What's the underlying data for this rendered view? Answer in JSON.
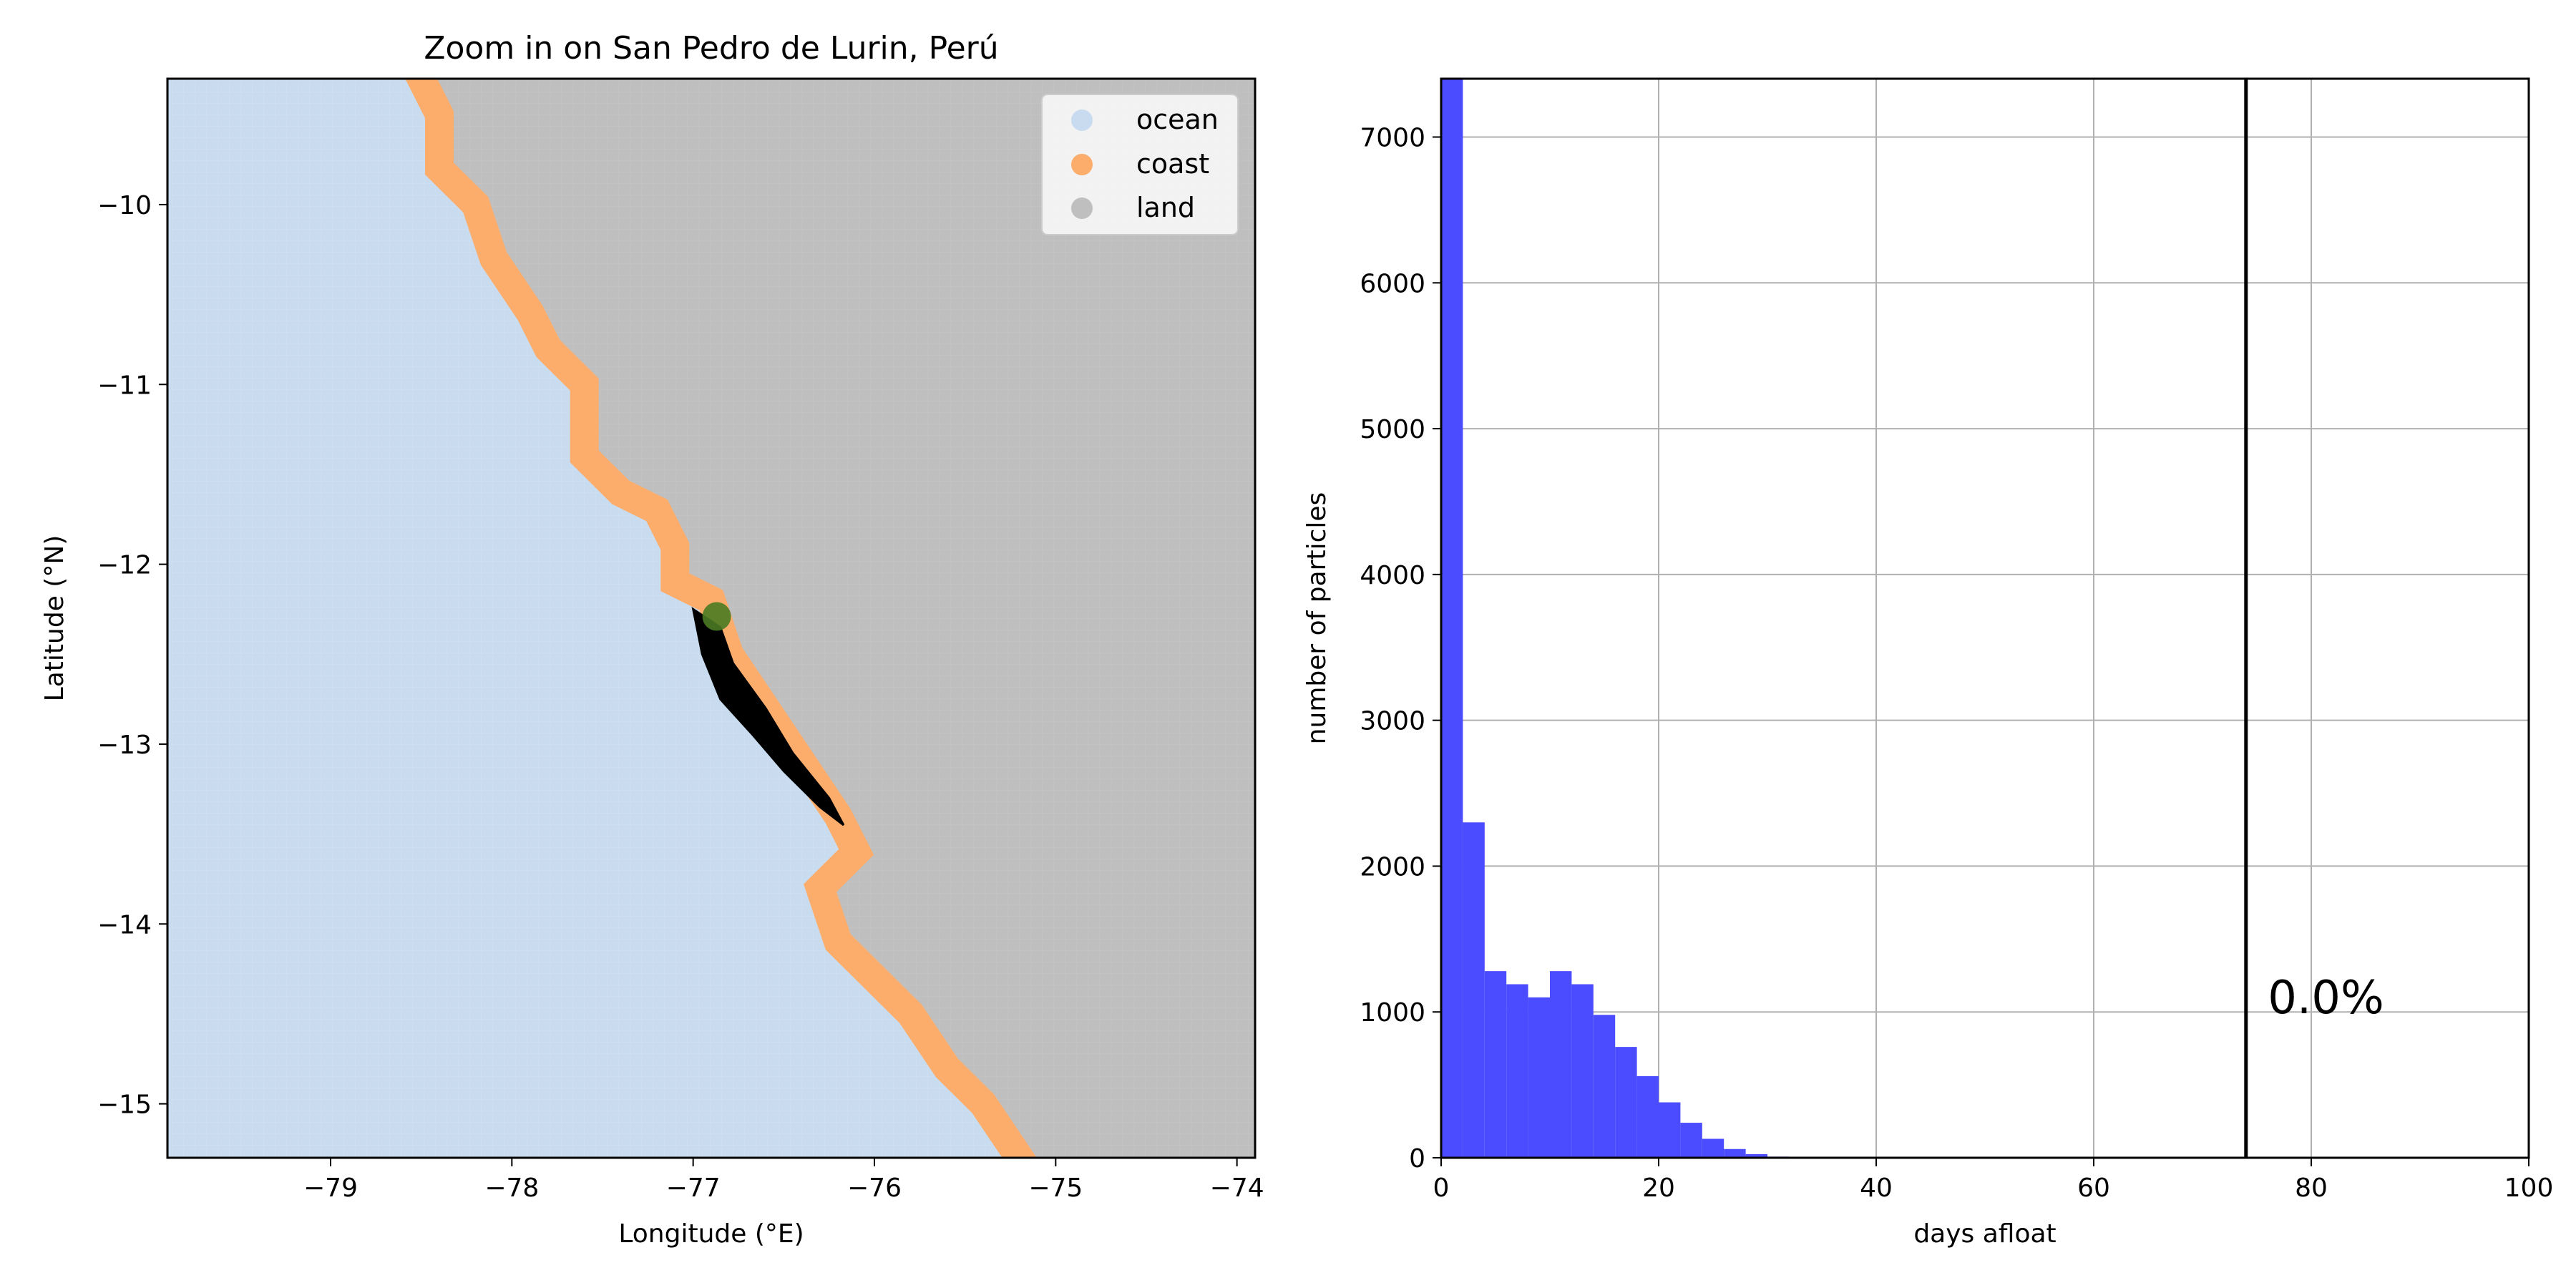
{
  "chart_data": [
    {
      "type": "map",
      "title": "Zoom in on San Pedro de Lurin, Perú",
      "xlabel": "Longitude (°E)",
      "ylabel": "Latitude (°N)",
      "xlim": [
        -79.9,
        -73.9
      ],
      "ylim": [
        -15.3,
        -9.3
      ],
      "xticks": [
        -79,
        -78,
        -77,
        -76,
        -75,
        -74
      ],
      "yticks": [
        -10,
        -11,
        -12,
        -13,
        -14,
        -15
      ],
      "xtick_labels": [
        "−79",
        "−78",
        "−77",
        "−76",
        "−75",
        "−74"
      ],
      "ytick_labels": [
        "−10",
        "−11",
        "−12",
        "−13",
        "−14",
        "−15"
      ],
      "legend": {
        "placement": "top-right",
        "entries": [
          {
            "label": "ocean",
            "color": "#c9dcef"
          },
          {
            "label": "coast",
            "color": "#fdad6b"
          },
          {
            "label": "land",
            "color": "#bfbfbf"
          }
        ]
      },
      "coastline": [
        [
          -78.5,
          -9.3
        ],
        [
          -78.4,
          -9.5
        ],
        [
          -78.4,
          -9.8
        ],
        [
          -78.2,
          -10.0
        ],
        [
          -78.1,
          -10.3
        ],
        [
          -77.9,
          -10.6
        ],
        [
          -77.8,
          -10.8
        ],
        [
          -77.6,
          -11.0
        ],
        [
          -77.6,
          -11.4
        ],
        [
          -77.4,
          -11.6
        ],
        [
          -77.2,
          -11.7
        ],
        [
          -77.1,
          -11.9
        ],
        [
          -77.1,
          -12.1
        ],
        [
          -76.9,
          -12.2
        ],
        [
          -76.8,
          -12.5
        ],
        [
          -76.6,
          -12.8
        ],
        [
          -76.4,
          -13.1
        ],
        [
          -76.2,
          -13.4
        ],
        [
          -76.1,
          -13.6
        ],
        [
          -76.3,
          -13.8
        ],
        [
          -76.2,
          -14.1
        ],
        [
          -76.0,
          -14.3
        ],
        [
          -75.8,
          -14.5
        ],
        [
          -75.6,
          -14.8
        ],
        [
          -75.4,
          -15.0
        ],
        [
          -75.2,
          -15.3
        ]
      ],
      "release_site": {
        "lon": -76.87,
        "lat": -12.29,
        "color": "#4a7a24"
      },
      "trajectory_band": [
        [
          -77.0,
          -12.25
        ],
        [
          -76.85,
          -12.35
        ],
        [
          -76.78,
          -12.55
        ],
        [
          -76.6,
          -12.8
        ],
        [
          -76.45,
          -13.05
        ],
        [
          -76.25,
          -13.3
        ],
        [
          -76.17,
          -13.45
        ],
        [
          -76.3,
          -13.35
        ],
        [
          -76.5,
          -13.15
        ],
        [
          -76.67,
          -12.95
        ],
        [
          -76.85,
          -12.75
        ],
        [
          -76.95,
          -12.5
        ]
      ]
    },
    {
      "type": "bar",
      "xlabel": "days afloat",
      "ylabel": "number of particles",
      "xlim": [
        0,
        100
      ],
      "ylim": [
        0,
        7400
      ],
      "xticks": [
        0,
        20,
        40,
        60,
        80,
        100
      ],
      "yticks": [
        0,
        1000,
        2000,
        3000,
        4000,
        5000,
        6000,
        7000
      ],
      "bin_width": 2,
      "bin_starts": [
        0,
        2,
        4,
        6,
        8,
        10,
        12,
        14,
        16,
        18,
        20,
        22,
        24,
        26,
        28,
        30
      ],
      "values": [
        7400,
        2300,
        1280,
        1190,
        1100,
        1280,
        1190,
        980,
        760,
        560,
        380,
        240,
        130,
        60,
        25,
        8
      ],
      "bar_color": "#4b4bff",
      "vline_x": 74,
      "annotation": "0.0%",
      "annotation_x": 76,
      "annotation_y": 1100,
      "grid": true
    }
  ]
}
